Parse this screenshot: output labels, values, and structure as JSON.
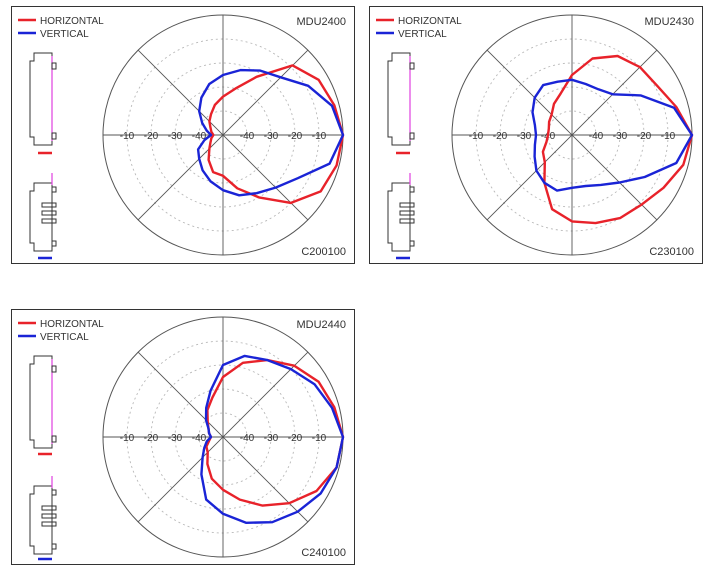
{
  "colors": {
    "horizontal": "#e8222a",
    "vertical": "#1a24d6",
    "ring": "#b8b8b8",
    "outline": "#333333",
    "device_accent": "#e040e0"
  },
  "panels": [
    {
      "model": "MDU2400",
      "code": "C200100",
      "legend": [
        "HORIZONTAL",
        "VERTICAL"
      ],
      "tick_labels": [
        "-10",
        "-20",
        "-30",
        "-40",
        "-40",
        "-30",
        "-20",
        "-10"
      ]
    },
    {
      "model": "MDU2430",
      "code": "C230100",
      "legend": [
        "HORIZONTAL",
        "VERTICAL"
      ],
      "tick_labels": [
        "-10",
        "-20",
        "-30",
        "-40",
        "-40",
        "-30",
        "-20",
        "-10"
      ]
    },
    {
      "model": "MDU2440",
      "code": "C240100",
      "legend": [
        "HORIZONTAL",
        "VERTICAL"
      ],
      "tick_labels": [
        "-10",
        "-20",
        "-30",
        "-40",
        "-40",
        "-30",
        "-20",
        "-10"
      ]
    }
  ],
  "chart_data": [
    {
      "type": "polar",
      "title": "MDU2400",
      "code": "C200100",
      "r_axis": {
        "units": "dB",
        "range": [
          -50,
          0
        ],
        "ticks": [
          -10,
          -20,
          -30,
          -40
        ]
      },
      "theta_deg": [
        0,
        15,
        30,
        45,
        60,
        75,
        90,
        105,
        120,
        135,
        150,
        165,
        180,
        195,
        210,
        225,
        240,
        255,
        270,
        285,
        300,
        315,
        330,
        345
      ],
      "series": [
        {
          "name": "HORIZONTAL",
          "values": [
            0,
            -2,
            -4,
            -9,
            -22,
            -30,
            -34,
            -37,
            -40,
            -42,
            -44,
            -45,
            -46,
            -45,
            -44,
            -42,
            -38,
            -34,
            -33,
            -27,
            -20,
            -10,
            -3,
            -1
          ]
        },
        {
          "name": "VERTICAL",
          "values": [
            0,
            -3,
            -9,
            -16,
            -19,
            -22,
            -25,
            -28,
            -32,
            -36,
            -40,
            -43,
            -45,
            -42,
            -38,
            -36,
            -33,
            -30,
            -27,
            -24,
            -22,
            -19,
            -14,
            -4
          ]
        }
      ]
    },
    {
      "type": "polar",
      "title": "MDU2430",
      "code": "C230100",
      "r_axis": {
        "units": "dB",
        "range": [
          -50,
          0
        ],
        "ticks": [
          -10,
          -20,
          -30,
          -40
        ]
      },
      "theta_deg": [
        0,
        15,
        30,
        45,
        60,
        75,
        90,
        105,
        120,
        135,
        150,
        165,
        180,
        195,
        210,
        225,
        240,
        255,
        270,
        285,
        300,
        315,
        330,
        345
      ],
      "series": [
        {
          "name": "HORIZONTAL",
          "values": [
            0,
            -5,
            -9,
            -10,
            -12,
            -17,
            -25,
            -32,
            -35,
            -38,
            -39,
            -40,
            -40,
            -39,
            -36,
            -34,
            -27,
            -18,
            -14,
            -12,
            -10,
            -9,
            -6,
            -2
          ]
        },
        {
          "name": "VERTICAL",
          "values": [
            0,
            -6,
            -17,
            -26,
            -28,
            -28,
            -27,
            -27,
            -26,
            -28,
            -31,
            -34,
            -35,
            -34,
            -32,
            -29,
            -27,
            -26,
            -28,
            -28,
            -26,
            -22,
            -15,
            -5
          ]
        }
      ]
    },
    {
      "type": "polar",
      "title": "MDU2440",
      "code": "C240100",
      "r_axis": {
        "units": "dB",
        "range": [
          -50,
          0
        ],
        "ticks": [
          -10,
          -20,
          -30,
          -40
        ]
      },
      "theta_deg": [
        0,
        15,
        30,
        45,
        60,
        75,
        90,
        105,
        120,
        135,
        150,
        165,
        180,
        195,
        210,
        225,
        240,
        255,
        270,
        285,
        300,
        315,
        330,
        345
      ],
      "series": [
        {
          "name": "HORIZONTAL",
          "values": [
            0,
            -2,
            -4,
            -8,
            -13,
            -18,
            -25,
            -33,
            -37,
            -41,
            -43,
            -44,
            -45,
            -44,
            -42,
            -41,
            -37,
            -32,
            -28,
            -23,
            -17,
            -11,
            -5,
            -1
          ]
        },
        {
          "name": "VERTICAL",
          "values": [
            0,
            -3,
            -6,
            -10,
            -13,
            -15,
            -20,
            -30,
            -36,
            -40,
            -43,
            -44,
            -45,
            -43,
            -41,
            -38,
            -32,
            -23,
            -18,
            -13,
            -9,
            -6,
            -3,
            -1
          ]
        }
      ]
    }
  ]
}
